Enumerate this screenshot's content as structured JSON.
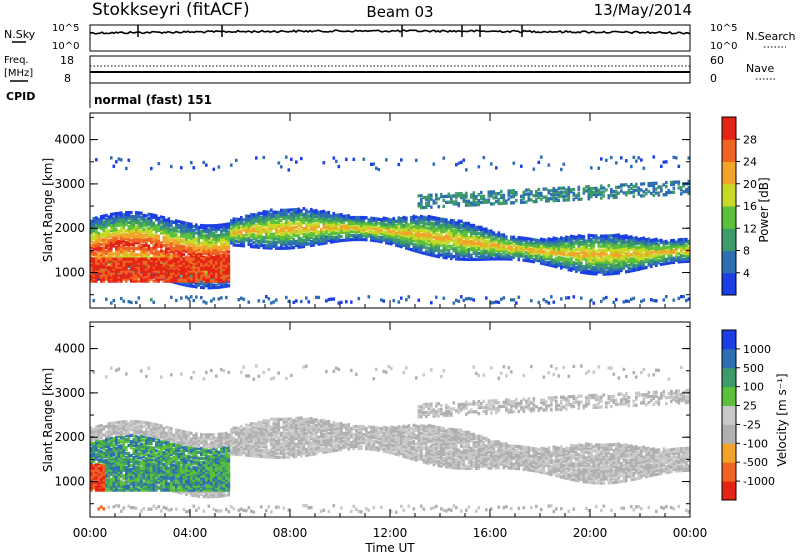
{
  "header": {
    "station": "Stokkseyri (fitACF)",
    "beam": "Beam 03",
    "date": "13/May/2014"
  },
  "top_panels": {
    "nsky_label": "N.Sky",
    "nsky_ticks": [
      "10^5",
      "10^0"
    ],
    "nsearch_label": "N.Search",
    "nsearch_ticks": [
      "10^5",
      "10^0"
    ],
    "freq_label_line1": "Freq.",
    "freq_label_line2": "[MHz]",
    "freq_ticks": [
      "18",
      "8"
    ],
    "nave_label": "Nave",
    "nave_ticks": [
      "60",
      "0"
    ],
    "cpid_label": "CPID",
    "cpid_value": "normal (fast) 151"
  },
  "colors": {
    "power": [
      "#1b3ee5",
      "#2d6fb0",
      "#3d9b6a",
      "#5cc03a",
      "#c8d826",
      "#f2a42a",
      "#ef6422",
      "#e52416"
    ],
    "velocity": [
      "#e52416",
      "#ef6422",
      "#f2a42a",
      "#b0b0b0",
      "#c8c8c8",
      "#5cc03a",
      "#3d9b6a",
      "#2d6fb0",
      "#1b3ee5"
    ]
  },
  "chart_data": [
    {
      "type": "heatmap",
      "name": "power",
      "ylabel": "Slant Range [km]",
      "xlim": [
        0,
        24
      ],
      "ylim": [
        200,
        4600
      ],
      "yticks": [
        "1000",
        "2000",
        "3000",
        "4000"
      ],
      "colorbar_label": "Power [dB]",
      "colorbar_ticks": [
        "28",
        "24",
        "20",
        "16",
        "12",
        "8",
        "4"
      ],
      "crange": [
        0,
        30
      ]
    },
    {
      "type": "heatmap",
      "name": "velocity",
      "xlabel": "Time UT",
      "xlim": [
        0,
        24
      ],
      "ylim": [
        200,
        4600
      ],
      "xticks": [
        "00:00",
        "04:00",
        "08:00",
        "12:00",
        "16:00",
        "20:00",
        "00:00"
      ],
      "ylabel": "Slant Range [km]",
      "yticks": [
        "1000",
        "2000",
        "3000",
        "4000"
      ],
      "colorbar_label": "Velocity [m s⁻¹]",
      "colorbar_ticks": [
        "1000",
        "500",
        "100",
        "25",
        "-25",
        "-100",
        "-500",
        "-1000"
      ]
    }
  ]
}
